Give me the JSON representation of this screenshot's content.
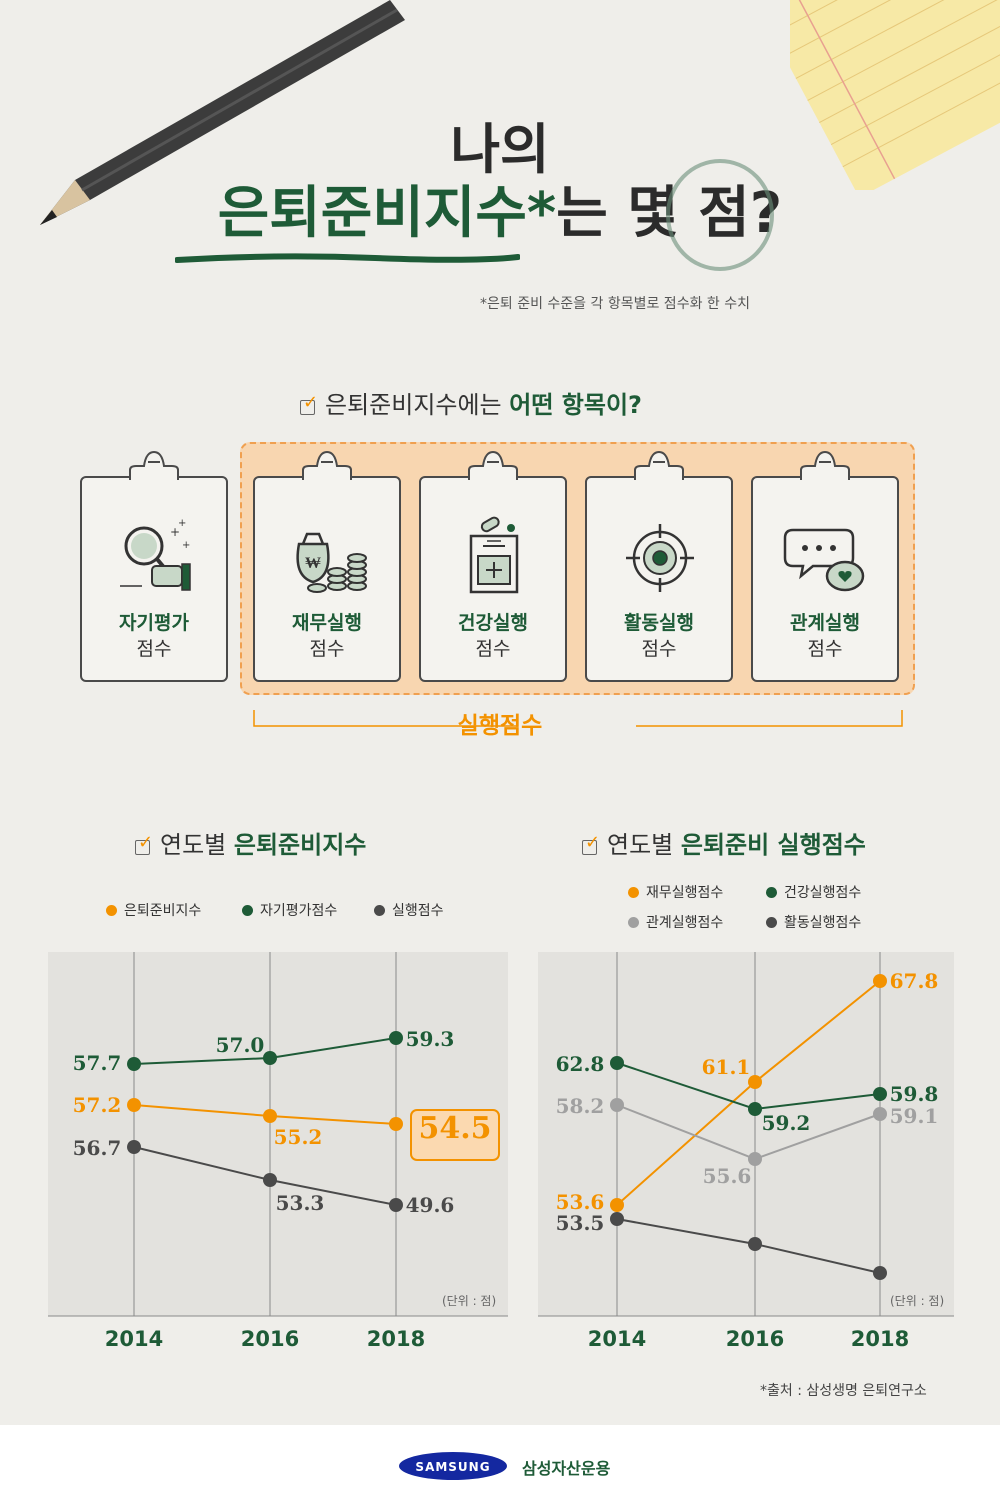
{
  "title": {
    "line1": "나의",
    "line2_green": "은퇴준비지수",
    "line2_star": "*",
    "line2_rest": "는 몇 점?",
    "note": "*은퇴 준비 수준을 각 항목별로 점수화 한 수치"
  },
  "items_section": {
    "heading_plain": "은퇴준비지수에는 ",
    "heading_bold": "어떤 항목이?",
    "cards": [
      {
        "name": "자기평가",
        "suffix": "점수",
        "icon": "magnifier-hand-icon"
      },
      {
        "name": "재무실행",
        "suffix": "점수",
        "icon": "money-bag-coins-icon"
      },
      {
        "name": "건강실행",
        "suffix": "점수",
        "icon": "medicine-box-icon"
      },
      {
        "name": "활동실행",
        "suffix": "점수",
        "icon": "target-icon"
      },
      {
        "name": "관계실행",
        "suffix": "점수",
        "icon": "chat-heart-icon"
      }
    ],
    "group_label": "실행점수"
  },
  "colors": {
    "green": "#1e5b37",
    "orange": "#f39200",
    "gray": "#a0a0a0",
    "dark": "#4a4a4a"
  },
  "chart1": {
    "heading_plain": "연도별 ",
    "heading_bold": "은퇴준비지수",
    "unit": "(단위 : 점)"
  },
  "chart2": {
    "heading_plain": "연도별 ",
    "heading_bold": "은퇴준비 실행점수",
    "unit": "(단위 : 점)"
  },
  "chart_data": [
    {
      "type": "line",
      "title": "연도별 은퇴준비지수",
      "x": [
        "2014",
        "2016",
        "2018"
      ],
      "series": [
        {
          "name": "은퇴준비지수",
          "color": "#f39200",
          "values": [
            57.2,
            55.2,
            54.5
          ],
          "labels": [
            "57.2",
            "55.2",
            "54.5"
          ]
        },
        {
          "name": "자기평가점수",
          "color": "#1e5b37",
          "values": [
            57.7,
            57.0,
            59.3
          ],
          "labels": [
            "57.7",
            "57.0",
            "59.3"
          ]
        },
        {
          "name": "실행점수",
          "color": "#4a4a4a",
          "values": [
            56.7,
            53.3,
            49.6
          ],
          "labels": [
            "56.7",
            "53.3",
            "49.6"
          ]
        }
      ],
      "highlight": "54.5",
      "unit": "(단위 : 점)",
      "grid": "vertical"
    },
    {
      "type": "line",
      "title": "연도별 은퇴준비 실행점수",
      "x": [
        "2014",
        "2016",
        "2018"
      ],
      "series": [
        {
          "name": "재무실행점수",
          "color": "#f39200",
          "values": [
            53.6,
            61.1,
            67.8
          ],
          "labels": [
            "53.6",
            "61.1",
            "67.8"
          ]
        },
        {
          "name": "건강실행점수",
          "color": "#1e5b37",
          "values": [
            62.8,
            59.2,
            59.8
          ],
          "labels": [
            "62.8",
            "59.2",
            "59.8"
          ]
        },
        {
          "name": "관계실행점수",
          "color": "#a0a0a0",
          "values": [
            58.2,
            55.6,
            59.1
          ],
          "labels": [
            "58.2",
            "55.6",
            "59.1"
          ]
        },
        {
          "name": "활동실행점수",
          "color": "#4a4a4a",
          "values": [
            53.5,
            null,
            null
          ],
          "labels": [
            "53.5",
            "",
            ""
          ]
        }
      ],
      "unit": "(단위 : 점)",
      "grid": "vertical"
    }
  ],
  "footer": {
    "source": "*출처 : 삼성생명 은퇴연구소",
    "logo_text": "SAMSUNG",
    "company": "삼성자산운용"
  }
}
